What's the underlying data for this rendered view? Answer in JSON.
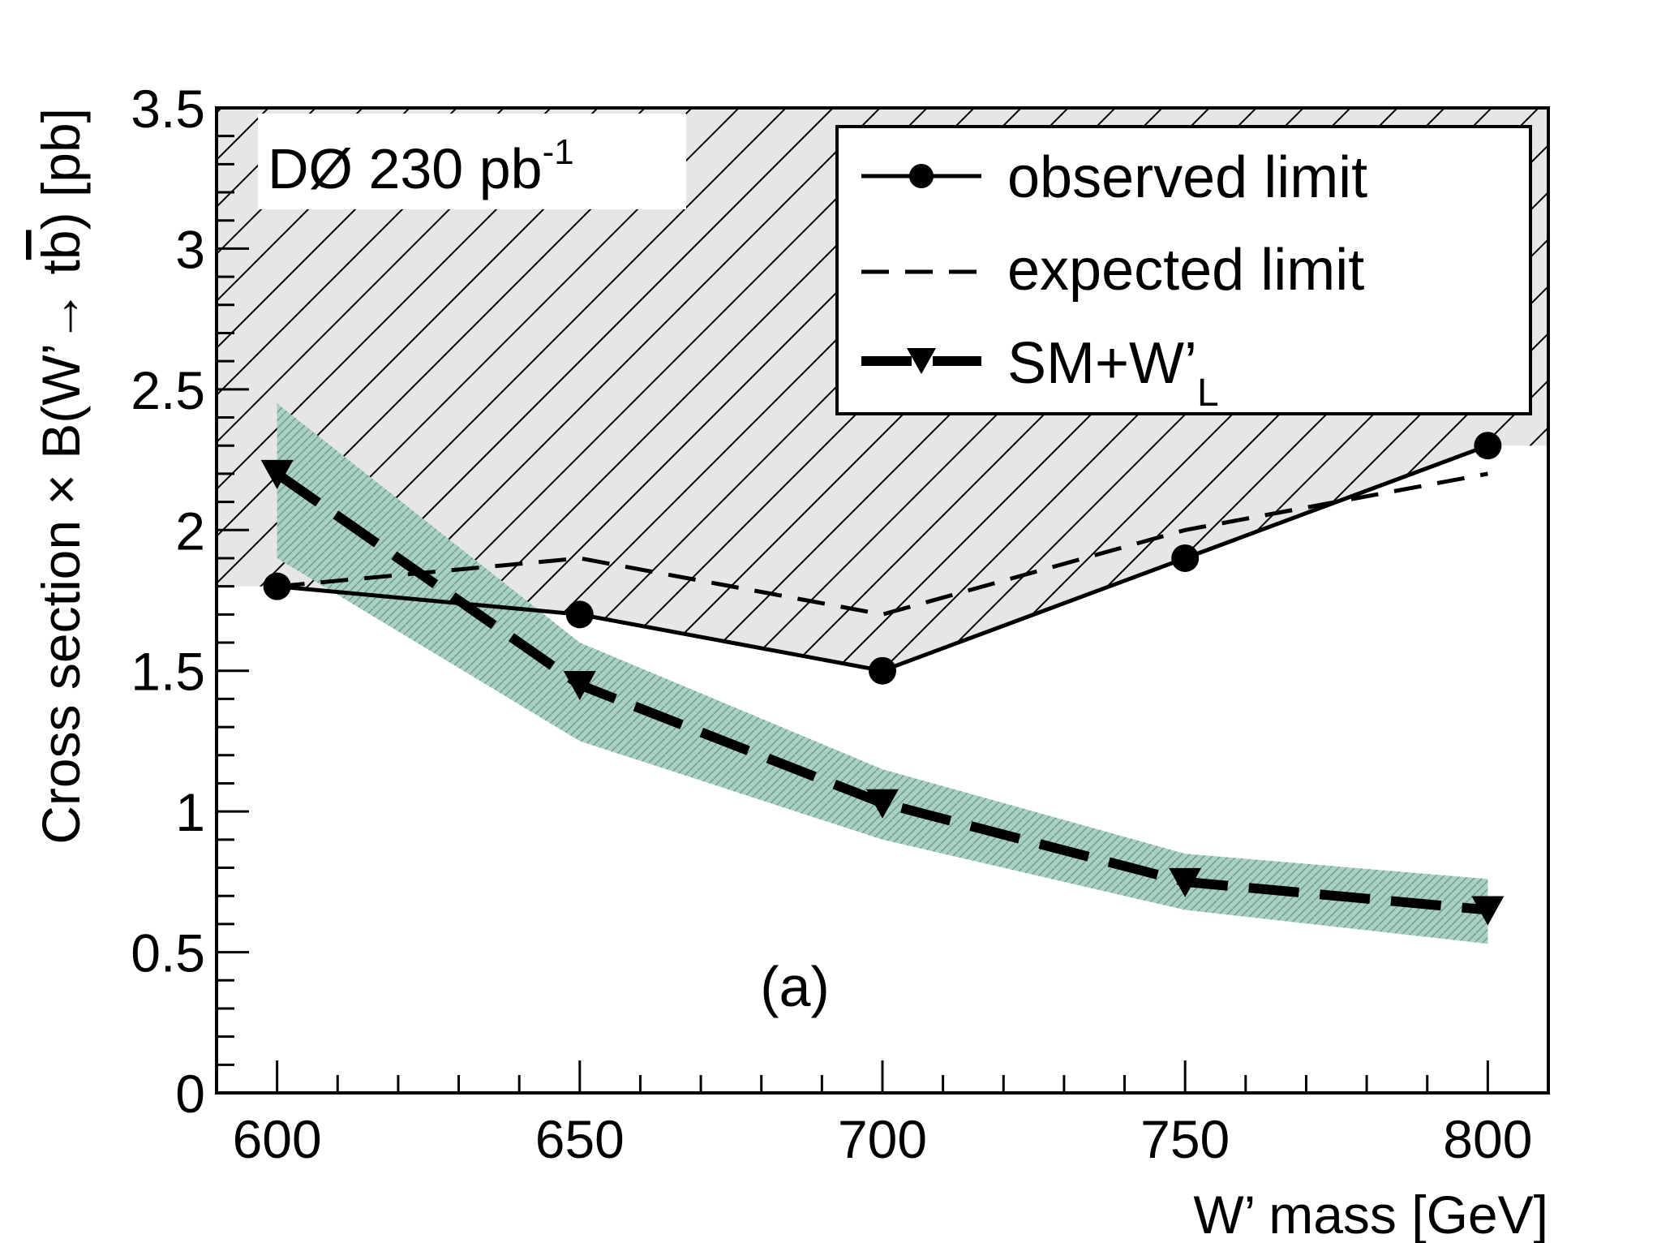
{
  "chart_data": {
    "type": "line",
    "title": "",
    "xlabel": "W’ mass [GeV]",
    "ylabel": "Cross section × B(W’→ tb̄) [pb]",
    "ylabel_parts": {
      "main": "Cross section × B(W’→ t",
      "bbar": "b",
      "close": ") [pb]"
    },
    "xlim": [
      590,
      810
    ],
    "ylim": [
      0,
      3.5
    ],
    "x_ticks": [
      600,
      650,
      700,
      750,
      800
    ],
    "x_tick_labels": [
      "600",
      "650",
      "700",
      "750",
      "800"
    ],
    "y_ticks": [
      0,
      0.5,
      1,
      1.5,
      2,
      2.5,
      3,
      3.5
    ],
    "y_tick_labels": [
      "0",
      "0.5",
      "1",
      "1.5",
      "2",
      "2.5",
      "3",
      "3.5"
    ],
    "x": [
      600,
      650,
      700,
      750,
      800
    ],
    "series": [
      {
        "name": "observed limit",
        "values": [
          1.8,
          1.7,
          1.5,
          1.9,
          2.3
        ],
        "color": "#000000"
      },
      {
        "name": "expected limit",
        "values": [
          1.8,
          1.9,
          1.7,
          2.0,
          2.2
        ],
        "color": "#000000"
      },
      {
        "name": "SM+W’",
        "name_sub": "L",
        "values": [
          2.2,
          1.45,
          1.03,
          0.75,
          0.65
        ],
        "color": "#000000",
        "band_low": [
          1.9,
          1.25,
          0.9,
          0.65,
          0.53
        ],
        "band_high": [
          2.45,
          1.6,
          1.15,
          0.85,
          0.76
        ],
        "band_color": "#a9d1c2"
      }
    ],
    "excluded_region_fill": "#e6e6e6",
    "annotations": {
      "experiment_main": "DØ 230 pb",
      "experiment_sup": "-1",
      "panel": "(a)"
    },
    "legend_placement": "top-right"
  }
}
